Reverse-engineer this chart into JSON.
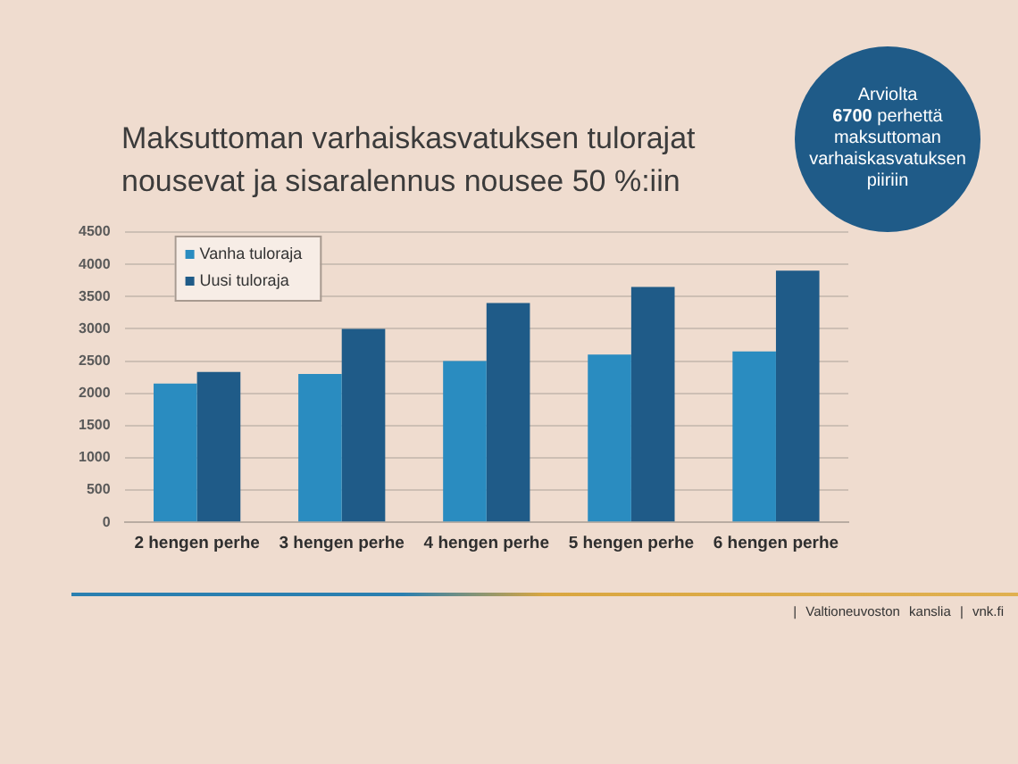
{
  "chart_data": {
    "type": "bar",
    "title": "Maksuttoman varhaiskasvatuksen tulorajat nousevat ja sisaralennus nousee 50 %:iin",
    "categories": [
      "2 hengen perhe",
      "3 hengen perhe",
      "4 hengen perhe",
      "5 hengen perhe",
      "6 hengen perhe"
    ],
    "series": [
      {
        "name": "Vanha tuloraja",
        "color": "#2a8cc0",
        "values": [
          2150,
          2300,
          2500,
          2600,
          2650
        ]
      },
      {
        "name": "Uusi tuloraja",
        "color": "#1f5b88",
        "values": [
          2330,
          3000,
          3400,
          3650,
          3900
        ]
      }
    ],
    "ylim": [
      0,
      4500
    ],
    "yticks": [
      0,
      500,
      1000,
      1500,
      2000,
      2500,
      3000,
      3500,
      4000,
      4500
    ],
    "grid": "y",
    "legend": "top left",
    "annotations": [
      "Arviolta\n6700 perhettä\nmaksuttoman\nvarhaiskasvatuksen\npiiriin",
      "| Valtioneuvoston kanslia | vnk.fi"
    ]
  }
}
